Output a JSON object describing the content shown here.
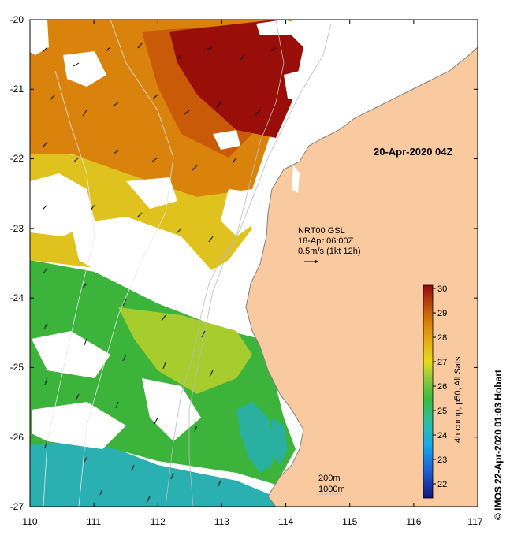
{
  "map": {
    "date_label": "20-Apr-2020 04Z",
    "current_source": "NRT00 GSL",
    "current_time": "18-Apr 06:00Z",
    "current_scale": "0.5m/s (1kt 12h)",
    "depth_contour_1": "200m",
    "depth_contour_2": "1000m",
    "colorbar_title": "4h comp, p50, All Sats",
    "credit": "© IMOS 22-Apr-2020 01:03 Hobart",
    "x_ticks": [
      "110",
      "111",
      "112",
      "113",
      "114",
      "115",
      "116",
      "117"
    ],
    "y_ticks": [
      "-20",
      "-21",
      "-22",
      "-23",
      "-24",
      "-25",
      "-26",
      "-27"
    ],
    "colorbar_ticks": [
      "30",
      "29",
      "28",
      "27",
      "26",
      "25",
      "24",
      "23",
      "22"
    ],
    "colorbar_range": [
      21.5,
      30.5
    ],
    "colors": {
      "land": "#f9c9a0",
      "cloud": "#ffffff",
      "coast": "#808080"
    }
  }
}
